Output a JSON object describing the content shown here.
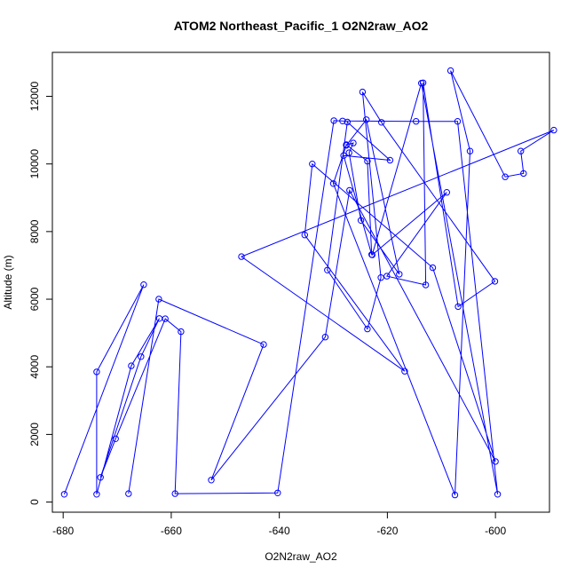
{
  "chart_data": {
    "type": "line",
    "title": "ATOM2 Northeast_Pacific_1 O2N2raw_AO2",
    "xlabel": "O2N2raw_AO2",
    "ylabel": "Altitude (m)",
    "xlim": [
      -682,
      -590
    ],
    "ylim": [
      -300,
      13300
    ],
    "xticks": [
      -680,
      -660,
      -640,
      -620,
      -600
    ],
    "yticks": [
      0,
      2000,
      4000,
      6000,
      8000,
      10000,
      12000
    ],
    "grid": false,
    "legend": "none",
    "series": [
      {
        "color": "#0000ff",
        "marker": "open-circle",
        "x": [
          -679.8,
          -665.1,
          -673.8,
          -673.8,
          -667.4,
          -662.2,
          -665.6,
          -673.1,
          -670.3,
          -661.1,
          -658.2,
          -659.3,
          -640.3,
          -629.9,
          -628.3,
          -614.7,
          -607.0,
          -599.6,
          -613.7,
          -622.8,
          -609.0,
          -620.1,
          -612.9,
          -613.4,
          -606.9,
          -600.1,
          -621.1,
          -624.6,
          -621.2,
          -623.7,
          -631.1,
          -627.4,
          -619.5,
          -628.1,
          -622.9,
          -623.7,
          -627.6,
          -626.3,
          -627.1,
          -624.9,
          -617.8,
          -623.9,
          -627.6,
          -630.0,
          -607.5,
          -604.7,
          -608.3,
          -598.2,
          -594.8,
          -595.3,
          -589.2,
          -647.0,
          -616.8,
          -635.3,
          -633.9,
          -611.6,
          -600.0,
          -627.0,
          -631.5,
          -652.6,
          -642.9,
          -662.3,
          -667.9
        ],
        "y": [
          230,
          6430,
          3850,
          230,
          4030,
          5430,
          4300,
          730,
          1870,
          5420,
          5040,
          250,
          270,
          11280,
          11270,
          11260,
          11260,
          230,
          12390,
          7310,
          9160,
          6680,
          6420,
          12400,
          5780,
          6530,
          11230,
          12130,
          6640,
          5120,
          6860,
          11240,
          10110,
          10250,
          7320,
          10080,
          10570,
          10620,
          10330,
          8330,
          6740,
          11310,
          10550,
          9420,
          210,
          10380,
          12760,
          9620,
          9720,
          10380,
          11000,
          7260,
          3870,
          7900,
          10000,
          6930,
          1200,
          9220,
          4880,
          650,
          4660,
          6000,
          250
        ]
      }
    ]
  }
}
